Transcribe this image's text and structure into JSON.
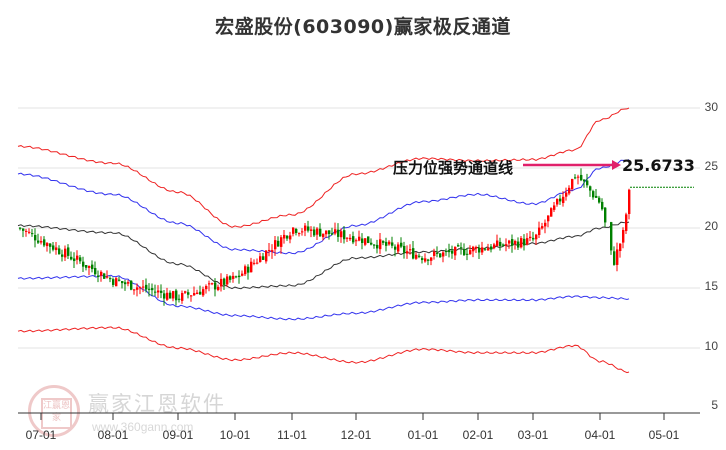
{
  "title": "宏盛股份(603090)赢家极反通道",
  "chart_data": {
    "type": "candlestick",
    "title": "宏盛股份(603090)赢家极反通道",
    "xlabel": "",
    "ylabel": "",
    "ylim": [
      5,
      30
    ],
    "y_ticks": [
      30,
      25,
      20,
      15,
      10,
      5
    ],
    "x_ticks": [
      "07-01",
      "08-01",
      "09-01",
      "10-01",
      "11-01",
      "12-01",
      "01-01",
      "02-01",
      "03-01",
      "04-01",
      "05-01"
    ],
    "grid": true,
    "legend": "none",
    "annotation": {
      "label": "压力位强势通道线",
      "value": "25.6733",
      "color": "#e0206a"
    },
    "current_price_line": 23.4,
    "series": [
      {
        "name": "upper_outer_band",
        "color": "#ee2222",
        "x": [
          "07-01",
          "08-01",
          "09-01",
          "10-01",
          "11-01",
          "12-01",
          "01-01",
          "02-01",
          "03-01",
          "03-20",
          "04-01",
          "04-10"
        ],
        "values": [
          26.8,
          25.4,
          23.0,
          20.1,
          21.1,
          24.5,
          25.8,
          25.6,
          25.7,
          26.5,
          29.0,
          30.0
        ]
      },
      {
        "name": "upper_band",
        "color": "#3333ee",
        "x": [
          "07-01",
          "08-01",
          "09-01",
          "10-01",
          "11-01",
          "12-01",
          "01-01",
          "02-01",
          "03-01",
          "03-20",
          "04-01",
          "04-10"
        ],
        "values": [
          24.5,
          22.8,
          20.4,
          18.2,
          17.9,
          20.2,
          22.2,
          22.8,
          22.0,
          23.2,
          25.0,
          25.7
        ]
      },
      {
        "name": "middle_line",
        "color": "#333333",
        "x": [
          "07-01",
          "08-01",
          "09-01",
          "10-01",
          "11-01",
          "12-01",
          "01-01",
          "02-01",
          "03-01",
          "03-20",
          "04-01",
          "04-10"
        ],
        "values": [
          20.2,
          19.6,
          17.0,
          15.0,
          15.2,
          17.5,
          18.0,
          18.3,
          18.7,
          19.3,
          20.0,
          20.5
        ]
      },
      {
        "name": "lower_band",
        "color": "#3333ee",
        "x": [
          "07-01",
          "08-01",
          "09-01",
          "10-01",
          "11-01",
          "12-01",
          "01-01",
          "02-01",
          "03-01",
          "03-20",
          "04-01",
          "04-10"
        ],
        "values": [
          15.8,
          16.0,
          13.5,
          12.7,
          12.4,
          12.9,
          13.8,
          14.0,
          14.0,
          14.3,
          14.2,
          14.1
        ]
      },
      {
        "name": "lower_outer_band",
        "color": "#ee2222",
        "x": [
          "07-01",
          "08-01",
          "09-01",
          "10-01",
          "11-01",
          "12-01",
          "01-01",
          "02-01",
          "03-01",
          "03-20",
          "04-01",
          "04-10"
        ],
        "values": [
          11.4,
          11.7,
          10.0,
          9.0,
          9.6,
          8.8,
          9.9,
          9.6,
          9.6,
          10.2,
          8.9,
          8.0
        ]
      },
      {
        "name": "price_close",
        "color": "#00a000",
        "x": [
          "07-01",
          "08-01",
          "09-01",
          "10-01",
          "11-01",
          "12-01",
          "01-01",
          "02-01",
          "03-01",
          "03-20",
          "04-01",
          "04-03",
          "04-08",
          "04-10"
        ],
        "values": [
          20.0,
          15.6,
          14.2,
          15.8,
          20.0,
          19.2,
          17.6,
          18.3,
          19.0,
          24.5,
          22.0,
          17.0,
          19.5,
          23.4
        ]
      }
    ]
  },
  "watermark": {
    "brand": "赢家江恩软件",
    "url": "www.360gann.com",
    "seal_chars": "江赢恩家"
  }
}
